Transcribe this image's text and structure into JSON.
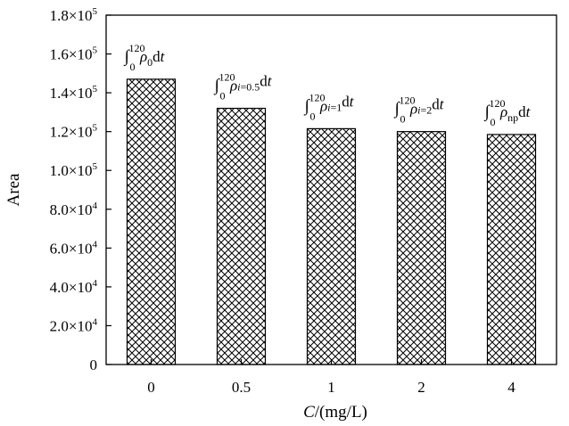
{
  "chart_data": {
    "type": "bar",
    "categories": [
      "0",
      "0.5",
      "1",
      "2",
      "4"
    ],
    "values": [
      147000,
      132000,
      121500,
      120000,
      118500
    ],
    "xlabel": {
      "italic": "C",
      "rest": "/(mg/L)"
    },
    "ylabel": "Area",
    "ylim": [
      0,
      180000
    ],
    "yticks": [
      {
        "value": 0,
        "mant": "0",
        "exp": ""
      },
      {
        "value": 20000,
        "mant": "2.0×10",
        "exp": "4"
      },
      {
        "value": 40000,
        "mant": "4.0×10",
        "exp": "4"
      },
      {
        "value": 60000,
        "mant": "6.0×10",
        "exp": "4"
      },
      {
        "value": 80000,
        "mant": "8.0×10",
        "exp": "4"
      },
      {
        "value": 100000,
        "mant": "1.0×10",
        "exp": "5"
      },
      {
        "value": 120000,
        "mant": "1.2×10",
        "exp": "5"
      },
      {
        "value": 140000,
        "mant": "1.4×10",
        "exp": "5"
      },
      {
        "value": 160000,
        "mant": "1.6×10",
        "exp": "5"
      },
      {
        "value": 180000,
        "mant": "1.8×10",
        "exp": "5"
      }
    ],
    "bar_pattern": "crosshatch",
    "grid": false,
    "annotations": [
      {
        "integral": "∫",
        "lower": "0",
        "upper": "120",
        "rho": "ρ",
        "sub": "0",
        "dt": "dt"
      },
      {
        "integral": "∫",
        "lower": "0",
        "upper": "120",
        "rho": "ρ",
        "sub": "i=0.5",
        "dt": "dt"
      },
      {
        "integral": "∫",
        "lower": "0",
        "upper": "120",
        "rho": "ρ",
        "sub": "i=1",
        "dt": "dt"
      },
      {
        "integral": "∫",
        "lower": "0",
        "upper": "120",
        "rho": "ρ",
        "sub": "i=2",
        "dt": "dt"
      },
      {
        "integral": "∫",
        "lower": "0",
        "upper": "120",
        "rho": "ρ",
        "sub": "np",
        "dt": "dt"
      }
    ]
  }
}
